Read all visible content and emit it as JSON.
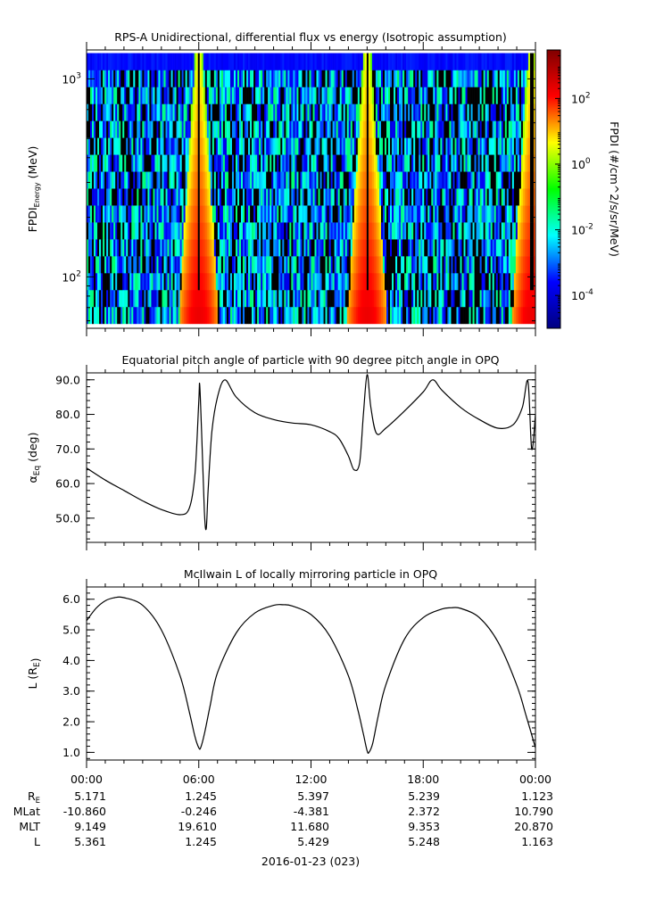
{
  "chart_data": [
    {
      "type": "heatmap",
      "title": "RPS-A Unidirectional, differential flux vs energy (Isotropic assumption)",
      "ylabel_main": "FPDI",
      "ylabel_sub": "Energy",
      "ylabel_unit": "(MeV)",
      "yscale": "log",
      "ylim": [
        55,
        1400
      ],
      "yticks": [
        {
          "value": 100,
          "base": "10",
          "exp": "2"
        },
        {
          "value": 1000,
          "base": "10",
          "exp": "3"
        }
      ],
      "energy_channels": 16,
      "colorbar": {
        "label": "FPDI (#/cm^2/s/sr/MeV)",
        "scale": "log",
        "range": [
          1e-05,
          3000
        ],
        "ticks": [
          {
            "value": 0.0001,
            "base": "10",
            "exp": "-4"
          },
          {
            "value": 0.01,
            "base": "10",
            "exp": "-2"
          },
          {
            "value": 1,
            "base": "10",
            "exp": "0"
          },
          {
            "value": 100,
            "base": "10",
            "exp": "2"
          }
        ],
        "colors": [
          "#000080",
          "#0000ff",
          "#00ffff",
          "#00ff00",
          "#ffff00",
          "#ff0000",
          "#800000"
        ]
      },
      "high_flux_passes_hours": [
        6.0,
        15.0,
        23.8
      ],
      "background_flux_range": [
        0.0001,
        0.05
      ],
      "top_channel_flux": 0.0003
    },
    {
      "type": "line",
      "title": "Equatorial pitch angle of particle with 90 degree pitch angle in OPQ",
      "ylabel_main": "α",
      "ylabel_sub": "Eq",
      "ylabel_unit": "(deg)",
      "ylim": [
        43,
        92
      ],
      "yticks": [
        50,
        60,
        70,
        80,
        90
      ],
      "x": [
        0,
        1,
        2,
        3,
        4,
        5,
        5.5,
        5.8,
        6.0,
        6.05,
        6.15,
        6.3,
        6.4,
        6.5,
        6.7,
        7.0,
        7.4,
        8,
        9,
        10,
        11,
        12,
        13,
        13.5,
        14,
        14.3,
        14.6,
        14.8,
        15.0,
        15.2,
        15.5,
        16,
        17,
        18,
        18.5,
        19,
        20,
        21,
        22,
        22.8,
        23.3,
        23.6,
        23.8,
        24
      ],
      "y": [
        64.5,
        61,
        58,
        55,
        52.5,
        51,
        53,
        63,
        84,
        88.5,
        75,
        52,
        47,
        58,
        75,
        85,
        90,
        85,
        80.5,
        78.5,
        77.5,
        77,
        75,
        73,
        68,
        64,
        66,
        80,
        91.5,
        82,
        74.5,
        76,
        81,
        86.5,
        90,
        87,
        82,
        78.5,
        76,
        77,
        82,
        89.5,
        70,
        80
      ]
    },
    {
      "type": "line",
      "title": "McIlwain L of locally mirroring particle in OPQ",
      "ylabel_main": "L (R",
      "ylabel_sub": "E",
      "ylabel_unit": ")",
      "ylim": [
        0.75,
        6.4
      ],
      "yticks": [
        1,
        2,
        3,
        4,
        5,
        6
      ],
      "x": [
        0,
        0.5,
        1,
        1.5,
        2,
        3,
        4,
        5,
        5.5,
        5.8,
        6.0,
        6.1,
        6.3,
        6.6,
        7,
        8,
        9,
        10,
        10.5,
        11,
        12,
        13,
        14,
        14.5,
        14.8,
        15.0,
        15.1,
        15.3,
        15.6,
        16,
        17,
        18,
        19,
        19.5,
        20,
        21,
        22,
        23,
        23.5,
        24
      ],
      "y": [
        5.3,
        5.7,
        5.95,
        6.05,
        6.05,
        5.8,
        5.0,
        3.5,
        2.3,
        1.5,
        1.15,
        1.15,
        1.6,
        2.5,
        3.6,
        4.9,
        5.55,
        5.8,
        5.82,
        5.78,
        5.5,
        4.8,
        3.5,
        2.4,
        1.6,
        1.05,
        1.0,
        1.3,
        2.2,
        3.2,
        4.7,
        5.4,
        5.68,
        5.72,
        5.7,
        5.4,
        4.6,
        3.2,
        2.2,
        1.15
      ]
    }
  ],
  "time_axis": {
    "xlim_hours": [
      0,
      24
    ],
    "tick_labels": [
      "00:00",
      "06:00",
      "12:00",
      "18:00",
      "00:00"
    ],
    "date_label": "2016-01-23 (023)"
  },
  "ephemeris": {
    "row_labels": [
      {
        "main": "R",
        "sub": "E"
      },
      {
        "main": "MLat",
        "sub": ""
      },
      {
        "main": "MLT",
        "sub": ""
      },
      {
        "main": "L",
        "sub": ""
      }
    ],
    "columns": [
      [
        "5.171",
        "-10.860",
        "9.149",
        "5.361"
      ],
      [
        "1.245",
        "-0.246",
        "19.610",
        "1.245"
      ],
      [
        "5.397",
        "-4.381",
        "11.680",
        "5.429"
      ],
      [
        "5.239",
        "2.372",
        "9.353",
        "5.248"
      ],
      [
        "1.123",
        "10.790",
        "20.870",
        "1.163"
      ]
    ]
  }
}
